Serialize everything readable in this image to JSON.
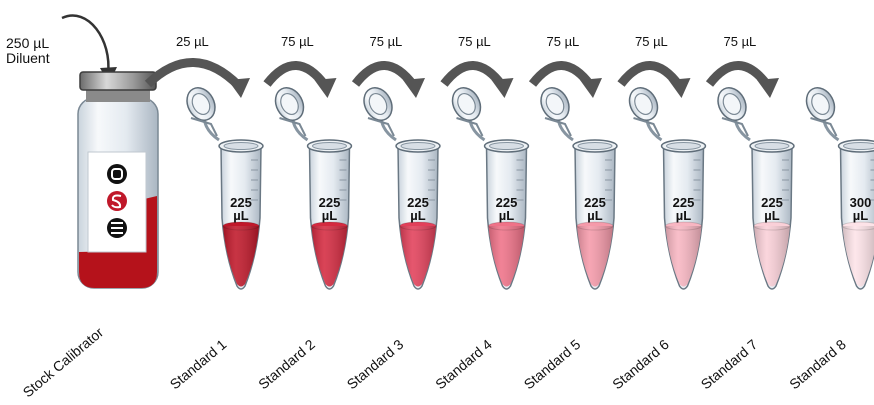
{
  "diluent": {
    "volume": "250 µL",
    "name": "Diluent"
  },
  "stock": {
    "label": "Stock Calibrator",
    "color": "#b5121b"
  },
  "transfers": [
    "25 µL",
    "75 µL",
    "75 µL",
    "75 µL",
    "75 µL",
    "75 µL",
    "75 µL"
  ],
  "standards": [
    {
      "name": "Standard 1",
      "vol": "225",
      "unit": "µL",
      "color": "#c0182a"
    },
    {
      "name": "Standard 2",
      "vol": "225",
      "unit": "µL",
      "color": "#d42a40"
    },
    {
      "name": "Standard 3",
      "vol": "225",
      "unit": "µL",
      "color": "#e2405a"
    },
    {
      "name": "Standard 4",
      "vol": "225",
      "unit": "µL",
      "color": "#ef7288"
    },
    {
      "name": "Standard 5",
      "vol": "225",
      "unit": "µL",
      "color": "#f59aaa"
    },
    {
      "name": "Standard 6",
      "vol": "225",
      "unit": "µL",
      "color": "#f8b6c2"
    },
    {
      "name": "Standard 7",
      "vol": "225",
      "unit": "µL",
      "color": "#fad0d8"
    },
    {
      "name": "Standard 8",
      "vol": "300",
      "unit": "µL",
      "color": "#fde3e8"
    }
  ]
}
